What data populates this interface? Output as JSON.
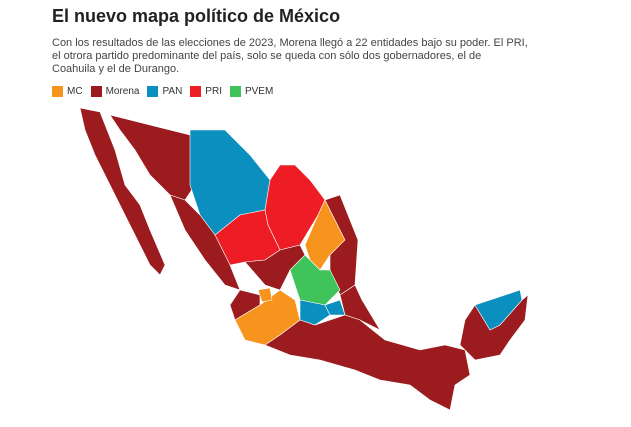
{
  "title": "El nuevo mapa político de México",
  "subtitle": [
    "Con los resultados de las elecciones de 2023, Morena llegó a 22 entidades bajo su poder. El PRI,",
    "el otrora partido predominante del país, solo se queda con sólo dos gobernadores, el de",
    "Coahuila y el de Durango."
  ],
  "legend": [
    {
      "name": "MC",
      "color": "#f7941d"
    },
    {
      "name": "Morena",
      "color": "#9b1b1e"
    },
    {
      "name": "PAN",
      "color": "#0b8fbf"
    },
    {
      "name": "PRI",
      "color": "#ee1c24"
    },
    {
      "name": "PVEM",
      "color": "#3fc35a"
    }
  ]
}
